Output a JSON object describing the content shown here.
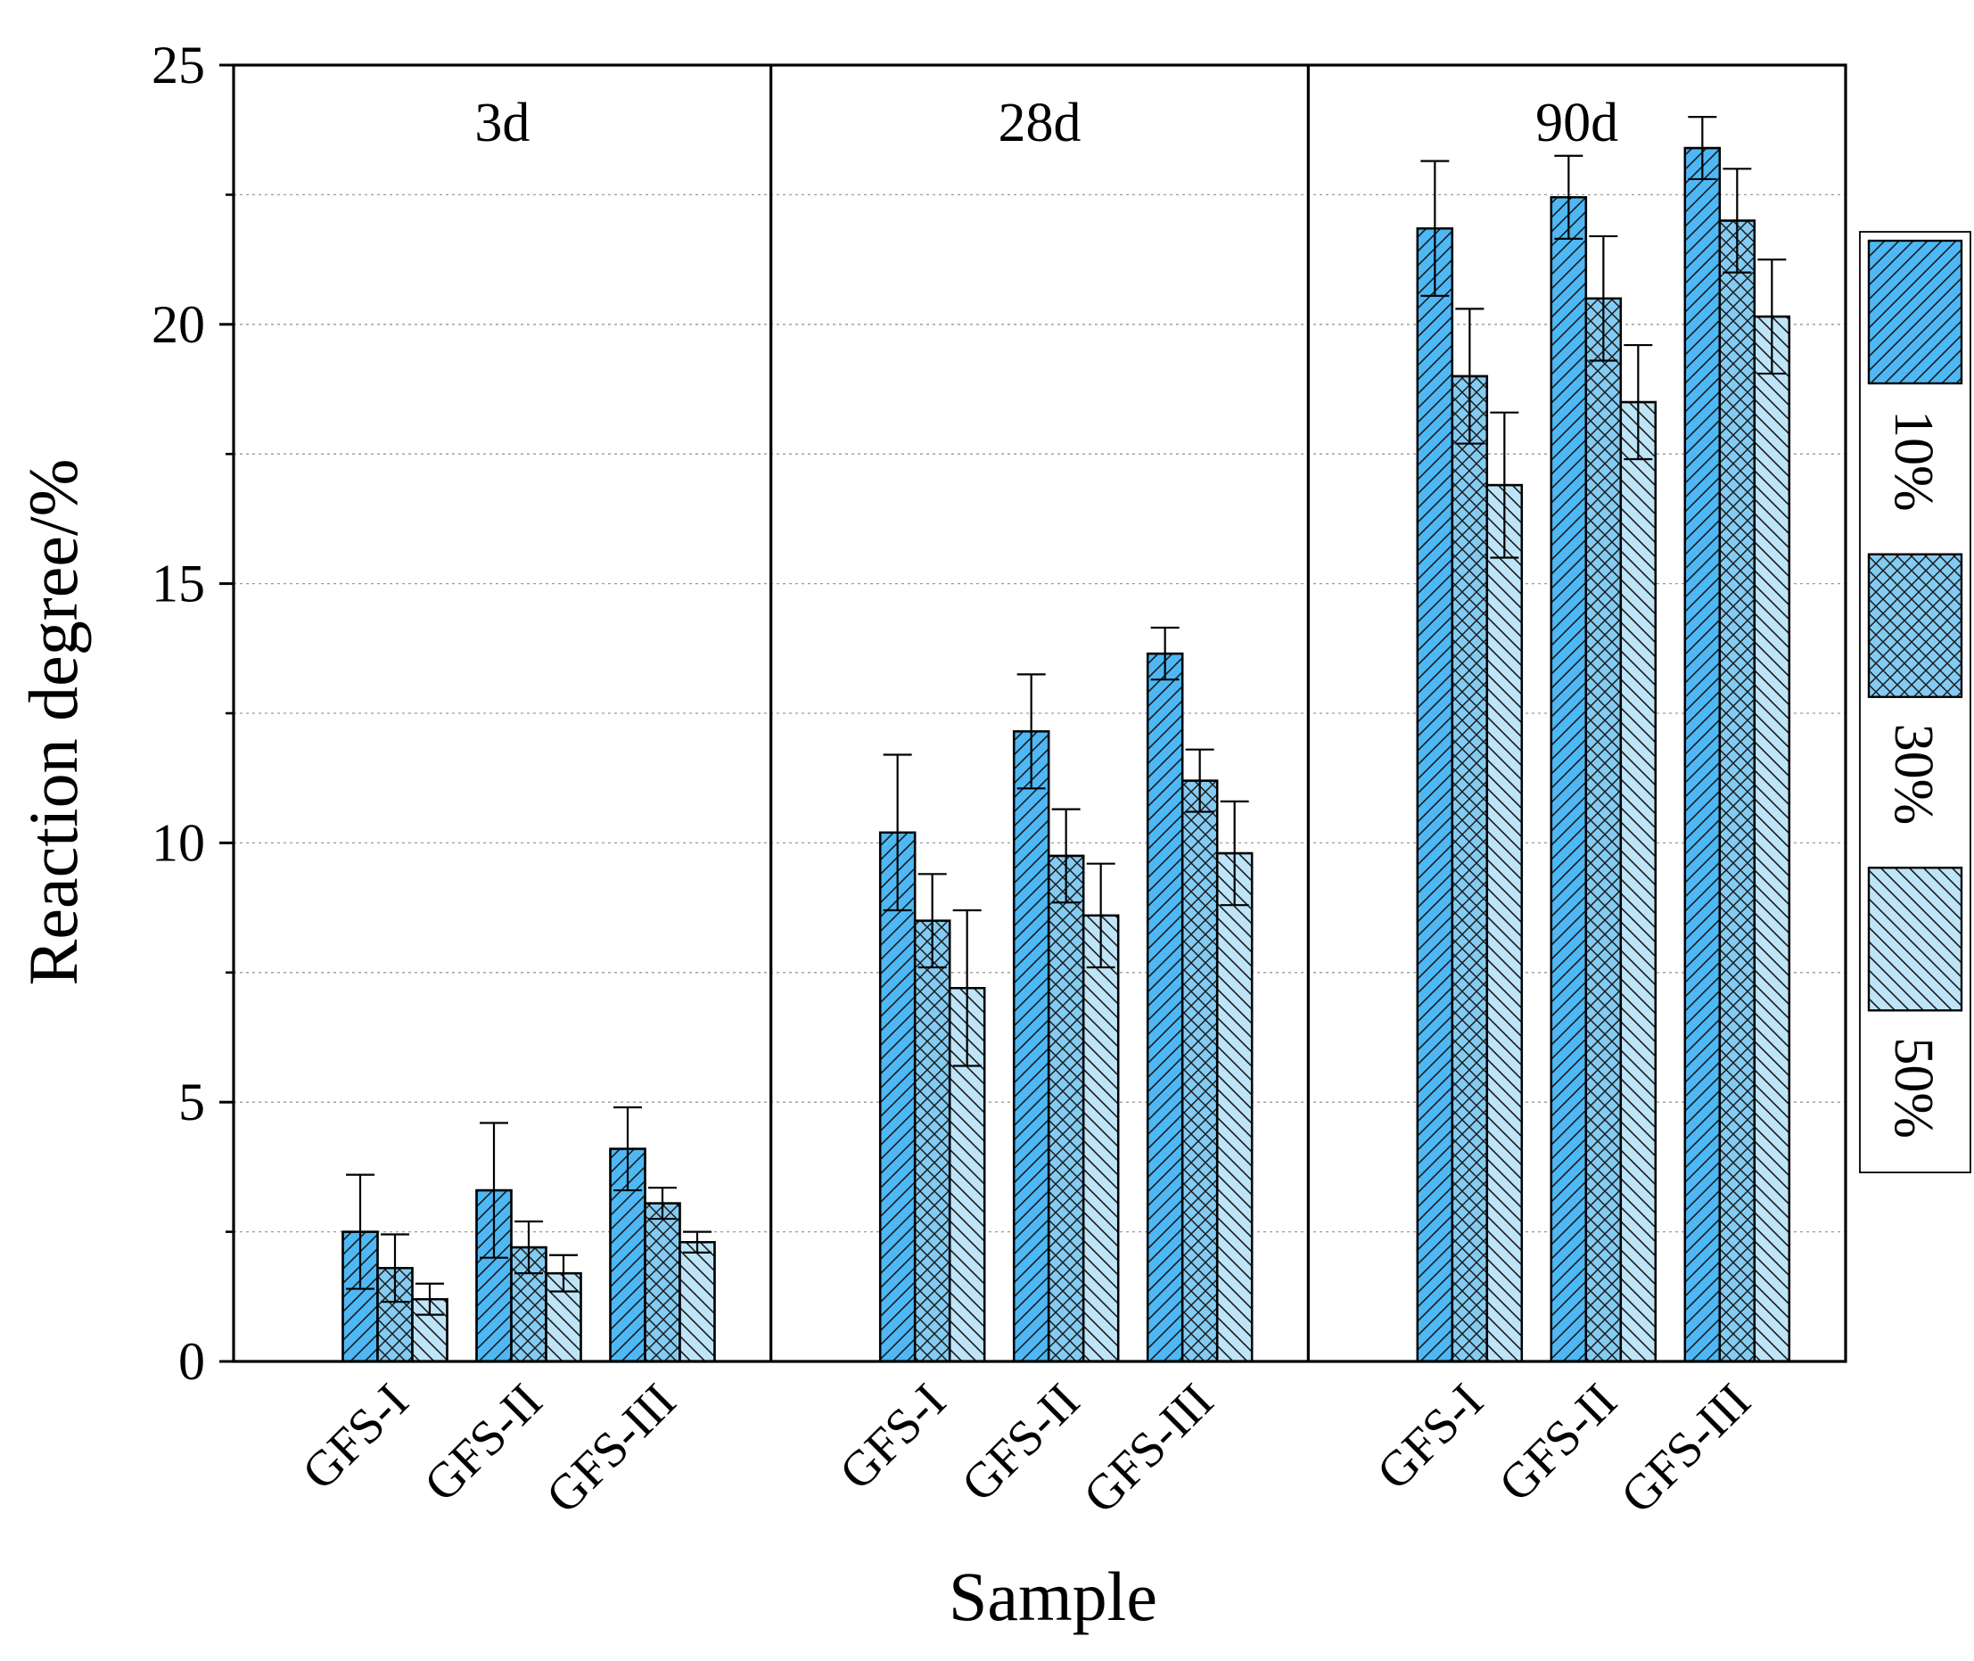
{
  "chart_data": {
    "type": "bar",
    "title": "",
    "xlabel": "Sample",
    "ylabel": "Reaction degree/%",
    "ylim": [
      0,
      25
    ],
    "yticks": [
      0,
      5,
      10,
      15,
      20,
      25
    ],
    "grid": true,
    "legend_position": "right",
    "categories": [
      "GFS-I",
      "GFS-II",
      "GFS-III"
    ],
    "panels": [
      {
        "label": "3d",
        "series": [
          {
            "name": "10%",
            "values": [
              2.5,
              3.3,
              4.1
            ],
            "errors": [
              1.1,
              1.3,
              0.8
            ]
          },
          {
            "name": "30%",
            "values": [
              1.8,
              2.2,
              3.05
            ],
            "errors": [
              0.65,
              0.5,
              0.3
            ]
          },
          {
            "name": "50%",
            "values": [
              1.2,
              1.7,
              2.3
            ],
            "errors": [
              0.3,
              0.35,
              0.2
            ]
          }
        ]
      },
      {
        "label": "28d",
        "series": [
          {
            "name": "10%",
            "values": [
              10.2,
              12.15,
              13.65
            ],
            "errors": [
              1.5,
              1.1,
              0.5
            ]
          },
          {
            "name": "30%",
            "values": [
              8.5,
              9.75,
              11.2
            ],
            "errors": [
              0.9,
              0.9,
              0.6
            ]
          },
          {
            "name": "50%",
            "values": [
              7.2,
              8.6,
              9.8
            ],
            "errors": [
              1.5,
              1.0,
              1.0
            ]
          }
        ]
      },
      {
        "label": "90d",
        "series": [
          {
            "name": "10%",
            "values": [
              21.85,
              22.45,
              23.4
            ],
            "errors": [
              1.3,
              0.8,
              0.6
            ]
          },
          {
            "name": "30%",
            "values": [
              19.0,
              20.5,
              22.0
            ],
            "errors": [
              1.3,
              1.2,
              1.0
            ]
          },
          {
            "name": "50%",
            "values": [
              16.9,
              18.5,
              20.15
            ],
            "errors": [
              1.4,
              1.1,
              1.1
            ]
          }
        ]
      }
    ],
    "series_styles": [
      {
        "name": "10%",
        "color": "#4DB8F5",
        "pattern": "hatch-forward"
      },
      {
        "name": "30%",
        "color": "#84CBF2",
        "pattern": "crosshatch"
      },
      {
        "name": "50%",
        "color": "#BEE4F8",
        "pattern": "hatch-back"
      }
    ]
  }
}
